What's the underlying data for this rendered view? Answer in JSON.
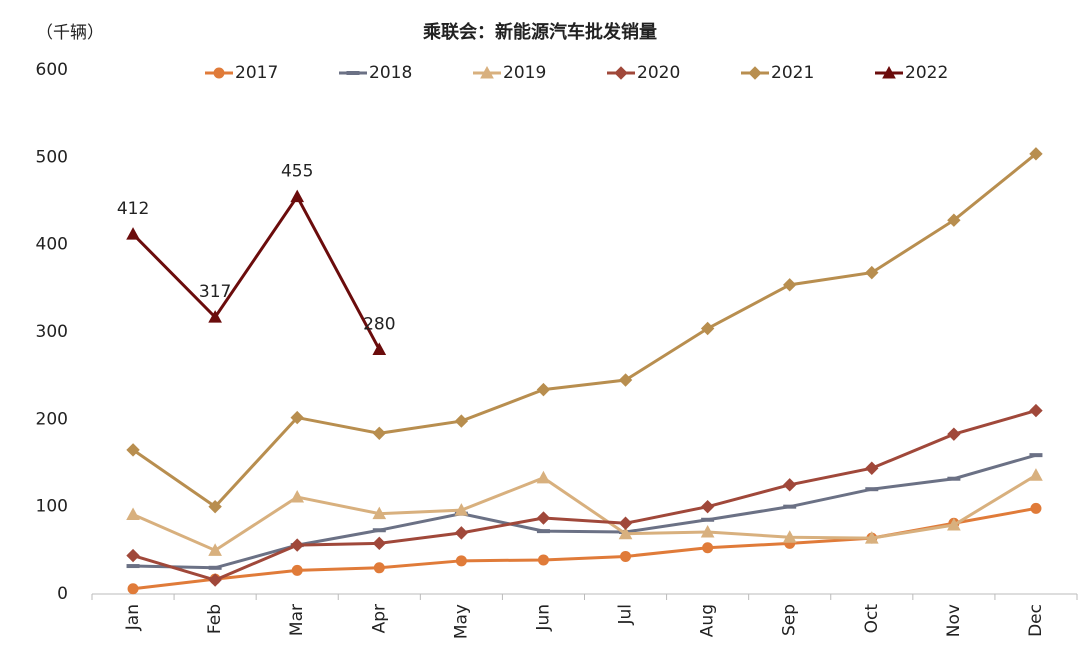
{
  "chart_data": {
    "type": "line",
    "title": "乘联会：新能源汽车批发销量",
    "y_axis_label": "（千辆）",
    "categories": [
      "Jan",
      "Feb",
      "Mar",
      "Apr",
      "May",
      "Jun",
      "Jul",
      "Aug",
      "Sep",
      "Oct",
      "Nov",
      "Dec"
    ],
    "ylim": [
      0,
      600
    ],
    "yticks": [
      0,
      100,
      200,
      300,
      400,
      500,
      600
    ],
    "grid": false,
    "legend": "top",
    "series": [
      {
        "name": "2017",
        "color": "#e07b39",
        "marker": "circle",
        "values": [
          6,
          17,
          27,
          30,
          38,
          39,
          43,
          53,
          58,
          64,
          81,
          98
        ]
      },
      {
        "name": "2018",
        "color": "#6b7185",
        "marker": "dash",
        "values": [
          32,
          30,
          56,
          73,
          92,
          72,
          71,
          85,
          100,
          120,
          132,
          159
        ]
      },
      {
        "name": "2019",
        "color": "#d8b07e",
        "marker": "triangle",
        "values": [
          91,
          50,
          111,
          92,
          96,
          133,
          69,
          71,
          65,
          64,
          79,
          136
        ]
      },
      {
        "name": "2020",
        "color": "#a0483a",
        "marker": "diamond",
        "values": [
          44,
          16,
          56,
          58,
          70,
          87,
          81,
          100,
          125,
          144,
          183,
          210
        ]
      },
      {
        "name": "2021",
        "color": "#b88e4f",
        "marker": "diamond",
        "values": [
          165,
          100,
          202,
          184,
          198,
          234,
          245,
          304,
          354,
          368,
          428,
          504
        ]
      },
      {
        "name": "2022",
        "color": "#6b0c0c",
        "marker": "triangle",
        "data_labels": true,
        "values": [
          412,
          317,
          455,
          280,
          null,
          null,
          null,
          null,
          null,
          null,
          null,
          null
        ]
      }
    ]
  }
}
